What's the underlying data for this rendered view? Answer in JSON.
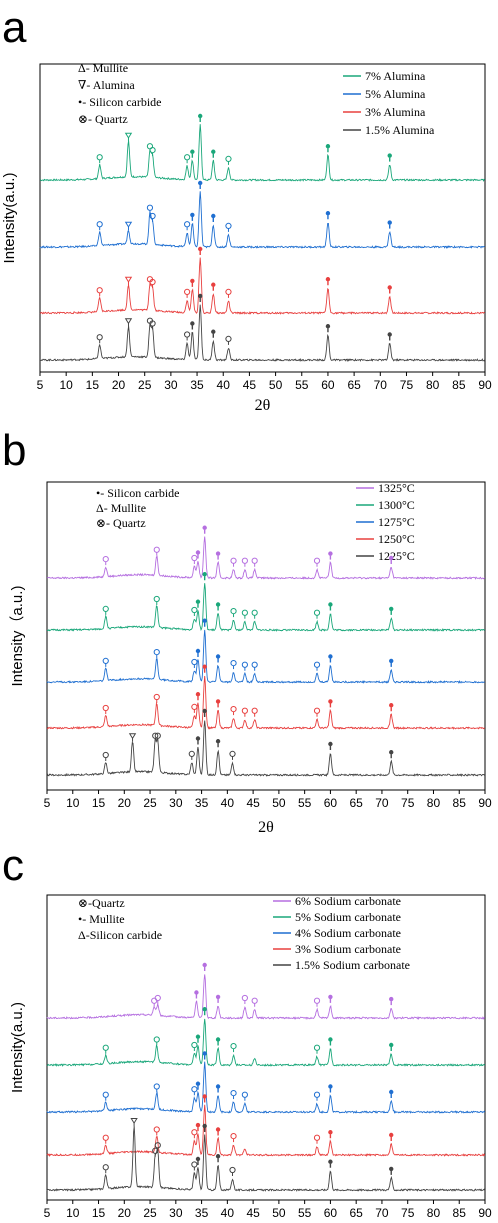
{
  "colors": {
    "green": "#1aa77a",
    "blue": "#1f6fd1",
    "red": "#e8403f",
    "gray": "#444444",
    "purple": "#b56fe0"
  },
  "chart_data": [
    {
      "panel_letter": "a",
      "type": "line",
      "xlabel": "2θ",
      "ylabel": "Intensity(a.u.)",
      "xlim": [
        5,
        90
      ],
      "xticks": [
        5,
        10,
        15,
        20,
        25,
        30,
        35,
        40,
        45,
        50,
        55,
        60,
        65,
        70,
        75,
        80,
        85,
        90
      ],
      "marker_key": [
        "Δ- Mullite",
        "∇- Alumina",
        "•- Silicon carbide",
        "⊗- Quartz"
      ],
      "legend_position": "top-right",
      "series": [
        {
          "name": "7% Alumina",
          "color": "green",
          "peaks": [
            [
              16.4,
              0.25
            ],
            [
              21.9,
              0.65
            ],
            [
              26.0,
              0.45
            ],
            [
              26.5,
              0.38
            ],
            [
              33.1,
              0.25
            ],
            [
              34.1,
              0.35
            ],
            [
              35.6,
              1.0
            ],
            [
              38.1,
              0.35
            ],
            [
              41.0,
              0.22
            ],
            [
              60.0,
              0.45
            ],
            [
              71.8,
              0.28
            ]
          ]
        },
        {
          "name": "5% Alumina",
          "color": "blue",
          "peaks": [
            [
              16.4,
              0.25
            ],
            [
              21.9,
              0.25
            ],
            [
              26.0,
              0.55
            ],
            [
              26.5,
              0.4
            ],
            [
              33.1,
              0.25
            ],
            [
              34.1,
              0.42
            ],
            [
              35.6,
              1.0
            ],
            [
              38.1,
              0.4
            ],
            [
              41.0,
              0.22
            ],
            [
              60.0,
              0.45
            ],
            [
              71.8,
              0.28
            ]
          ]
        },
        {
          "name": "3% Alumina",
          "color": "red",
          "peaks": [
            [
              16.4,
              0.25
            ],
            [
              21.9,
              0.45
            ],
            [
              26.0,
              0.45
            ],
            [
              26.5,
              0.4
            ],
            [
              33.1,
              0.22
            ],
            [
              34.1,
              0.42
            ],
            [
              35.6,
              1.0
            ],
            [
              38.1,
              0.35
            ],
            [
              41.0,
              0.22
            ],
            [
              60.0,
              0.45
            ],
            [
              71.8,
              0.3
            ]
          ]
        },
        {
          "name": "1.5% Alumina",
          "color": "gray",
          "peaks": [
            [
              16.4,
              0.25
            ],
            [
              21.9,
              0.55
            ],
            [
              26.0,
              0.55
            ],
            [
              26.5,
              0.5
            ],
            [
              33.1,
              0.3
            ],
            [
              34.1,
              0.5
            ],
            [
              35.6,
              1.0
            ],
            [
              38.1,
              0.35
            ],
            [
              41.0,
              0.22
            ],
            [
              60.0,
              0.45
            ],
            [
              71.8,
              0.3
            ]
          ]
        }
      ]
    },
    {
      "panel_letter": "b",
      "type": "line",
      "xlabel": "2θ",
      "ylabel": "Intensity（a.u.)",
      "xlim": [
        5,
        90
      ],
      "xticks": [
        5,
        10,
        15,
        20,
        25,
        30,
        35,
        40,
        45,
        50,
        55,
        60,
        65,
        70,
        75,
        80,
        85,
        90
      ],
      "marker_key": [
        "•- Silicon carbide",
        "Δ- Mullite",
        "⊗- Quartz"
      ],
      "legend_position": "top-right",
      "series": [
        {
          "name": "1325°C",
          "color": "purple",
          "peaks": [
            [
              16.4,
              0.18
            ],
            [
              26.3,
              0.35
            ],
            [
              33.6,
              0.2
            ],
            [
              34.3,
              0.3
            ],
            [
              35.6,
              0.75
            ],
            [
              38.2,
              0.28
            ],
            [
              41.2,
              0.15
            ],
            [
              43.4,
              0.15
            ],
            [
              45.3,
              0.15
            ],
            [
              57.4,
              0.15
            ],
            [
              60.0,
              0.28
            ],
            [
              71.8,
              0.2
            ]
          ]
        },
        {
          "name": "1300°C",
          "color": "green",
          "peaks": [
            [
              16.4,
              0.22
            ],
            [
              26.3,
              0.4
            ],
            [
              33.6,
              0.2
            ],
            [
              34.3,
              0.35
            ],
            [
              35.6,
              0.85
            ],
            [
              38.2,
              0.3
            ],
            [
              41.2,
              0.18
            ],
            [
              43.4,
              0.15
            ],
            [
              45.3,
              0.15
            ],
            [
              57.4,
              0.15
            ],
            [
              60.0,
              0.3
            ],
            [
              71.8,
              0.22
            ]
          ]
        },
        {
          "name": "1275°C",
          "color": "blue",
          "peaks": [
            [
              16.4,
              0.22
            ],
            [
              26.3,
              0.38
            ],
            [
              33.6,
              0.2
            ],
            [
              34.3,
              0.4
            ],
            [
              35.6,
              0.95
            ],
            [
              38.2,
              0.3
            ],
            [
              41.2,
              0.18
            ],
            [
              43.4,
              0.15
            ],
            [
              45.3,
              0.15
            ],
            [
              57.4,
              0.15
            ],
            [
              60.0,
              0.3
            ],
            [
              71.8,
              0.22
            ]
          ]
        },
        {
          "name": "1250°C",
          "color": "red",
          "peaks": [
            [
              16.4,
              0.2
            ],
            [
              26.3,
              0.4
            ],
            [
              33.6,
              0.22
            ],
            [
              34.3,
              0.45
            ],
            [
              35.6,
              0.95
            ],
            [
              38.2,
              0.32
            ],
            [
              41.2,
              0.18
            ],
            [
              43.4,
              0.15
            ],
            [
              45.3,
              0.15
            ],
            [
              57.4,
              0.15
            ],
            [
              60.0,
              0.32
            ],
            [
              71.8,
              0.25
            ]
          ]
        },
        {
          "name": "1225°C",
          "color": "gray",
          "peaks": [
            [
              16.4,
              0.2
            ],
            [
              21.6,
              0.55
            ],
            [
              26.0,
              0.55
            ],
            [
              26.5,
              0.55
            ],
            [
              33.1,
              0.22
            ],
            [
              34.3,
              0.5
            ],
            [
              35.6,
              1.0
            ],
            [
              38.2,
              0.45
            ],
            [
              41.0,
              0.22
            ],
            [
              60.0,
              0.4
            ],
            [
              71.8,
              0.25
            ]
          ]
        }
      ]
    },
    {
      "panel_letter": "c",
      "type": "line",
      "xlabel": "",
      "ylabel": "Intensity(a.u.)",
      "xlim": [
        5,
        90
      ],
      "xticks": [
        5,
        10,
        15,
        20,
        25,
        30,
        35,
        40,
        45,
        50,
        55,
        60,
        65,
        70,
        75,
        80,
        85,
        90
      ],
      "marker_key": [
        "⊗-Quartz",
        "•- Mullite",
        "Δ-Silicon carbide"
      ],
      "legend_position": "top-right",
      "series": [
        {
          "name": "6% Sodium carbonate",
          "color": "purple",
          "peaks": [
            [
              25.8,
              0.15
            ],
            [
              26.5,
              0.2
            ],
            [
              34.0,
              0.3
            ],
            [
              35.6,
              0.8
            ],
            [
              38.2,
              0.22
            ],
            [
              43.4,
              0.2
            ],
            [
              45.3,
              0.15
            ],
            [
              57.4,
              0.15
            ],
            [
              60.0,
              0.22
            ],
            [
              71.8,
              0.18
            ]
          ]
        },
        {
          "name": "5% Sodium carbonate",
          "color": "green",
          "peaks": [
            [
              16.4,
              0.15
            ],
            [
              26.3,
              0.3
            ],
            [
              33.6,
              0.2
            ],
            [
              34.3,
              0.35
            ],
            [
              35.6,
              0.85
            ],
            [
              38.2,
              0.3
            ],
            [
              41.2,
              0.18
            ],
            [
              45.3,
              0.12
            ],
            [
              57.4,
              0.15
            ],
            [
              60.0,
              0.3
            ],
            [
              71.8,
              0.2
            ]
          ]
        },
        {
          "name": "4% Sodium carbonate",
          "color": "blue",
          "peaks": [
            [
              16.4,
              0.15
            ],
            [
              26.3,
              0.3
            ],
            [
              33.6,
              0.25
            ],
            [
              34.3,
              0.35
            ],
            [
              35.6,
              0.9
            ],
            [
              38.2,
              0.3
            ],
            [
              41.2,
              0.18
            ],
            [
              43.4,
              0.15
            ],
            [
              57.4,
              0.15
            ],
            [
              60.0,
              0.3
            ],
            [
              71.8,
              0.2
            ]
          ]
        },
        {
          "name": "3% Sodium carbonate",
          "color": "red",
          "peaks": [
            [
              16.4,
              0.15
            ],
            [
              26.3,
              0.3
            ],
            [
              33.6,
              0.25
            ],
            [
              34.3,
              0.38
            ],
            [
              35.6,
              0.9
            ],
            [
              38.2,
              0.3
            ],
            [
              41.2,
              0.18
            ],
            [
              43.4,
              0.12
            ],
            [
              57.4,
              0.15
            ],
            [
              60.0,
              0.25
            ],
            [
              71.8,
              0.2
            ]
          ]
        },
        {
          "name": "1.5% Sodium carbonate",
          "color": "gray",
          "peaks": [
            [
              16.4,
              0.25
            ],
            [
              21.9,
              1.1
            ],
            [
              26.0,
              0.55
            ],
            [
              26.5,
              0.65
            ],
            [
              33.6,
              0.3
            ],
            [
              34.3,
              0.4
            ],
            [
              35.6,
              1.0
            ],
            [
              38.2,
              0.45
            ],
            [
              41.0,
              0.2
            ],
            [
              60.0,
              0.35
            ],
            [
              71.8,
              0.22
            ]
          ]
        }
      ]
    }
  ]
}
